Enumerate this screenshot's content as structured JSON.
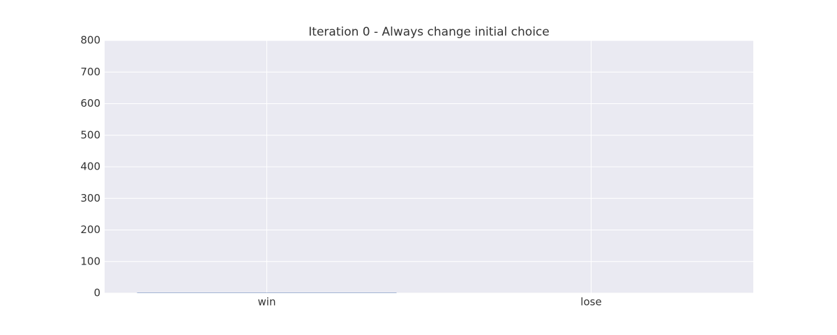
{
  "chart_data": {
    "type": "bar",
    "title": "Iteration 0 - Always change initial choice",
    "categories": [
      "win",
      "lose"
    ],
    "values": [
      1,
      0
    ],
    "color": "#4c72b0",
    "ylim": [
      0,
      800
    ],
    "yticks": [
      0,
      100,
      200,
      300,
      400,
      500,
      600,
      700,
      800
    ],
    "grid": true
  }
}
